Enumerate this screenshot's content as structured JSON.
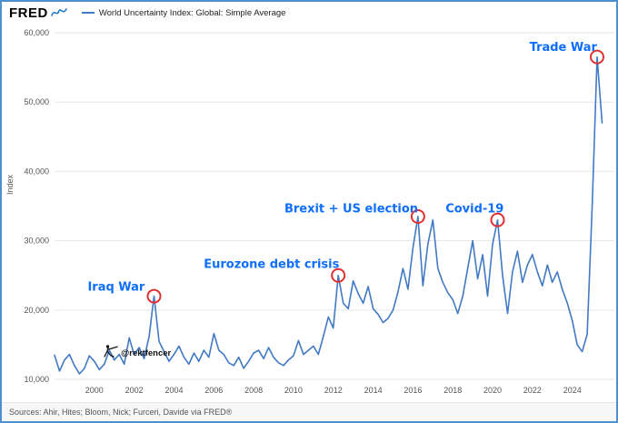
{
  "header": {
    "logo_text": "FRED",
    "legend": {
      "label": "World Uncertainty Index: Global: Simple Average"
    }
  },
  "colors": {
    "frame_border": "#4a90d2",
    "line": "#4179c4",
    "annotation": "#0d6efd",
    "circle": "#e03131",
    "grid": "#e6e6e6",
    "tick_text": "#555555"
  },
  "watermark": {
    "icon": "fencer",
    "text": "@rektfencer"
  },
  "footer": {
    "sources": "Sources: Ahir, Hites; Bloom, Nick; Furceri, Davide via FRED®"
  },
  "chart_data": {
    "type": "line",
    "title": "World Uncertainty Index: Global: Simple Average",
    "xlabel": "",
    "ylabel": "Index",
    "legend_position": "top",
    "grid": true,
    "x_range": [
      1998,
      2025.75
    ],
    "ylim": [
      10000,
      60000
    ],
    "x_ticks": [
      2000,
      2002,
      2004,
      2006,
      2008,
      2010,
      2012,
      2014,
      2016,
      2018,
      2020,
      2022,
      2024
    ],
    "y_ticks": [
      10000,
      20000,
      30000,
      40000,
      50000,
      60000
    ],
    "annotation_color": "#0d6efd",
    "circle_color": "#e03131",
    "grid_color": "#e6e6e6",
    "series": [
      {
        "name": "World Uncertainty Index: Global: Simple Average",
        "color": "#4179c4",
        "points": [
          [
            1998.0,
            13500
          ],
          [
            1998.25,
            11200
          ],
          [
            1998.5,
            12800
          ],
          [
            1998.75,
            13600
          ],
          [
            1999.0,
            12000
          ],
          [
            1999.25,
            10800
          ],
          [
            1999.5,
            11600
          ],
          [
            1999.75,
            13400
          ],
          [
            2000.0,
            12600
          ],
          [
            2000.25,
            11400
          ],
          [
            2000.5,
            12200
          ],
          [
            2000.75,
            14200
          ],
          [
            2001.0,
            12800
          ],
          [
            2001.25,
            13600
          ],
          [
            2001.5,
            12200
          ],
          [
            2001.75,
            16000
          ],
          [
            2002.0,
            13600
          ],
          [
            2002.25,
            14600
          ],
          [
            2002.5,
            13000
          ],
          [
            2002.75,
            16200
          ],
          [
            2003.0,
            22000
          ],
          [
            2003.25,
            15500
          ],
          [
            2003.5,
            14000
          ],
          [
            2003.75,
            12600
          ],
          [
            2004.0,
            13600
          ],
          [
            2004.25,
            14800
          ],
          [
            2004.5,
            13200
          ],
          [
            2004.75,
            12200
          ],
          [
            2005.0,
            13800
          ],
          [
            2005.25,
            12600
          ],
          [
            2005.5,
            14200
          ],
          [
            2005.75,
            13200
          ],
          [
            2006.0,
            16600
          ],
          [
            2006.25,
            14200
          ],
          [
            2006.5,
            13600
          ],
          [
            2006.75,
            12400
          ],
          [
            2007.0,
            12000
          ],
          [
            2007.25,
            13200
          ],
          [
            2007.5,
            11600
          ],
          [
            2007.75,
            12600
          ],
          [
            2008.0,
            13800
          ],
          [
            2008.25,
            14200
          ],
          [
            2008.5,
            13000
          ],
          [
            2008.75,
            14600
          ],
          [
            2009.0,
            13200
          ],
          [
            2009.25,
            12400
          ],
          [
            2009.5,
            12000
          ],
          [
            2009.75,
            12800
          ],
          [
            2010.0,
            13400
          ],
          [
            2010.25,
            15600
          ],
          [
            2010.5,
            13600
          ],
          [
            2010.75,
            14200
          ],
          [
            2011.0,
            14800
          ],
          [
            2011.25,
            13600
          ],
          [
            2011.5,
            16200
          ],
          [
            2011.75,
            19000
          ],
          [
            2012.0,
            17400
          ],
          [
            2012.25,
            25000
          ],
          [
            2012.5,
            21000
          ],
          [
            2012.75,
            20200
          ],
          [
            2013.0,
            24200
          ],
          [
            2013.25,
            22400
          ],
          [
            2013.5,
            21000
          ],
          [
            2013.75,
            23400
          ],
          [
            2014.0,
            20200
          ],
          [
            2014.25,
            19400
          ],
          [
            2014.5,
            18200
          ],
          [
            2014.75,
            18800
          ],
          [
            2015.0,
            20000
          ],
          [
            2015.25,
            22600
          ],
          [
            2015.5,
            26000
          ],
          [
            2015.75,
            23000
          ],
          [
            2016.0,
            29000
          ],
          [
            2016.25,
            33500
          ],
          [
            2016.5,
            23500
          ],
          [
            2016.75,
            29500
          ],
          [
            2017.0,
            33000
          ],
          [
            2017.25,
            26000
          ],
          [
            2017.5,
            24000
          ],
          [
            2017.75,
            22500
          ],
          [
            2018.0,
            21500
          ],
          [
            2018.25,
            19500
          ],
          [
            2018.5,
            22000
          ],
          [
            2018.75,
            26000
          ],
          [
            2019.0,
            30000
          ],
          [
            2019.25,
            24500
          ],
          [
            2019.5,
            28000
          ],
          [
            2019.75,
            22000
          ],
          [
            2020.0,
            29500
          ],
          [
            2020.25,
            33000
          ],
          [
            2020.5,
            25000
          ],
          [
            2020.75,
            19500
          ],
          [
            2021.0,
            25500
          ],
          [
            2021.25,
            28500
          ],
          [
            2021.5,
            24000
          ],
          [
            2021.75,
            26500
          ],
          [
            2022.0,
            28000
          ],
          [
            2022.25,
            25500
          ],
          [
            2022.5,
            23500
          ],
          [
            2022.75,
            26500
          ],
          [
            2023.0,
            24000
          ],
          [
            2023.25,
            25500
          ],
          [
            2023.5,
            23000
          ],
          [
            2023.75,
            21000
          ],
          [
            2024.0,
            18500
          ],
          [
            2024.25,
            15000
          ],
          [
            2024.5,
            14000
          ],
          [
            2024.75,
            16500
          ],
          [
            2025.0,
            35000
          ],
          [
            2025.25,
            56500
          ],
          [
            2025.5,
            47000
          ]
        ]
      }
    ],
    "annotations": [
      {
        "label": "Iraq War",
        "circle": [
          2003.0,
          22000
        ],
        "label_pos": [
          2001.1,
          23300
        ]
      },
      {
        "label": "Eurozone debt crisis",
        "circle": [
          2012.25,
          25000
        ],
        "label_pos": [
          2008.9,
          26600
        ]
      },
      {
        "label": "Brexit + US election",
        "circle": [
          2016.25,
          33500
        ],
        "label_pos": [
          2012.9,
          34600
        ]
      },
      {
        "label": "Covid-19",
        "circle": [
          2020.25,
          33000
        ],
        "label_pos": [
          2019.1,
          34600
        ]
      },
      {
        "label": "Trade War",
        "circle": [
          2025.25,
          56500
        ],
        "label_pos": [
          2023.55,
          57900
        ]
      }
    ]
  }
}
